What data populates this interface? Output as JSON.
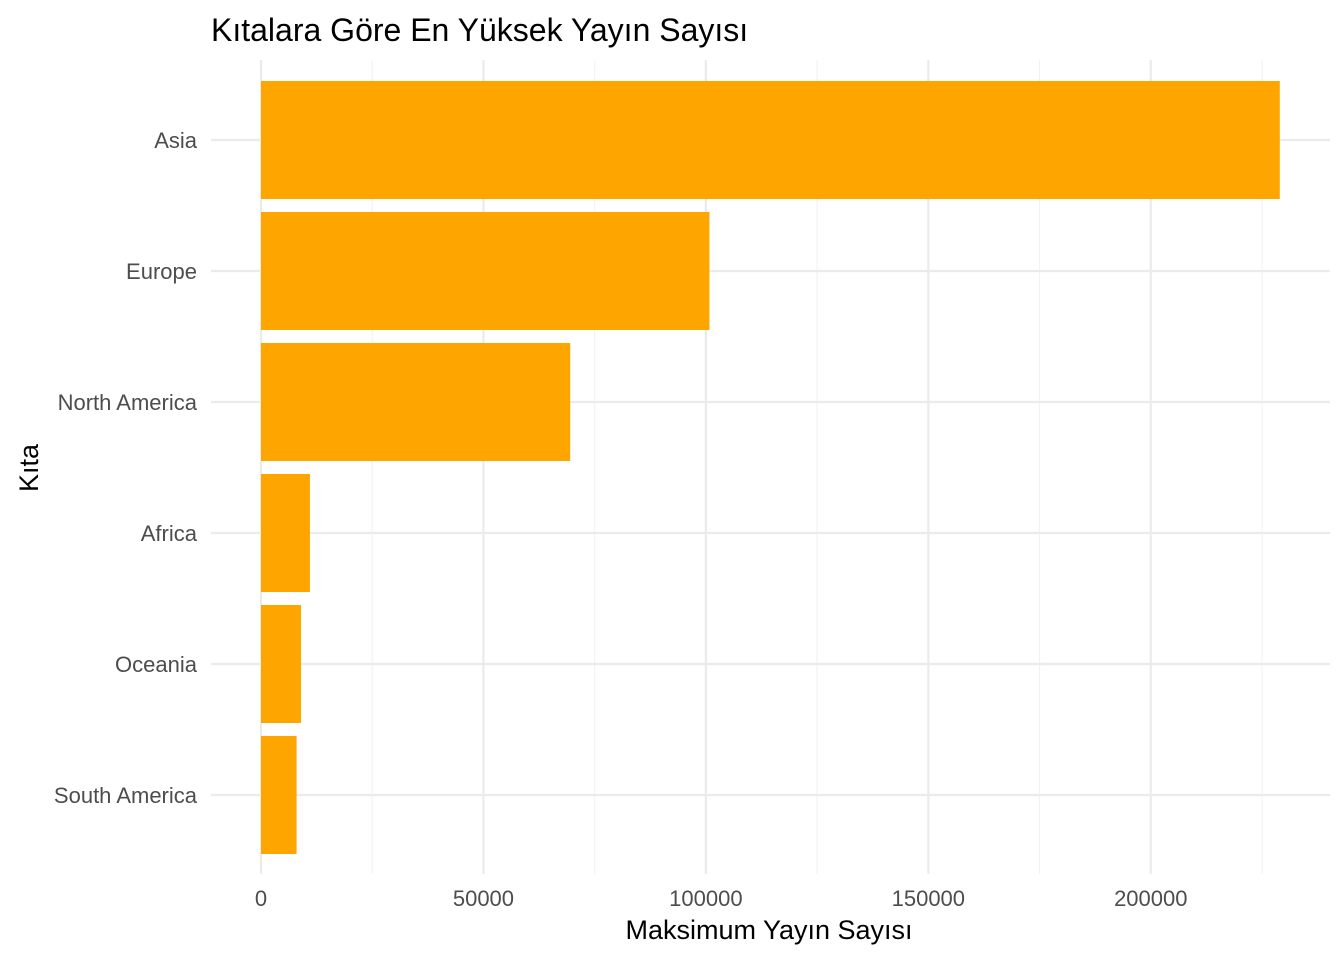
{
  "colors": {
    "bar": "#FFA500",
    "background": "#FFFFFF",
    "grid_major": "#EBEBEB",
    "grid_minor": "#F2F2F2",
    "tick_text": "#4D4D4D",
    "title_text": "#000000"
  },
  "chart_data": {
    "type": "bar",
    "orientation": "horizontal",
    "title": "Kıtalara Göre En Yüksek Yayın Sayısı",
    "xlabel": "Maksimum Yayın Sayısı",
    "ylabel": "Kıta",
    "categories": [
      "Asia",
      "Europe",
      "North America",
      "Africa",
      "Oceania",
      "South America"
    ],
    "values": [
      229000,
      100800,
      69500,
      11000,
      9000,
      8000
    ],
    "xlim": [
      0,
      237000
    ],
    "x_ticks": [
      0,
      50000,
      100000,
      150000,
      200000
    ],
    "x_tick_labels": [
      "0",
      "50000",
      "100000",
      "150000",
      "200000"
    ],
    "grid": true,
    "legend": "none"
  }
}
